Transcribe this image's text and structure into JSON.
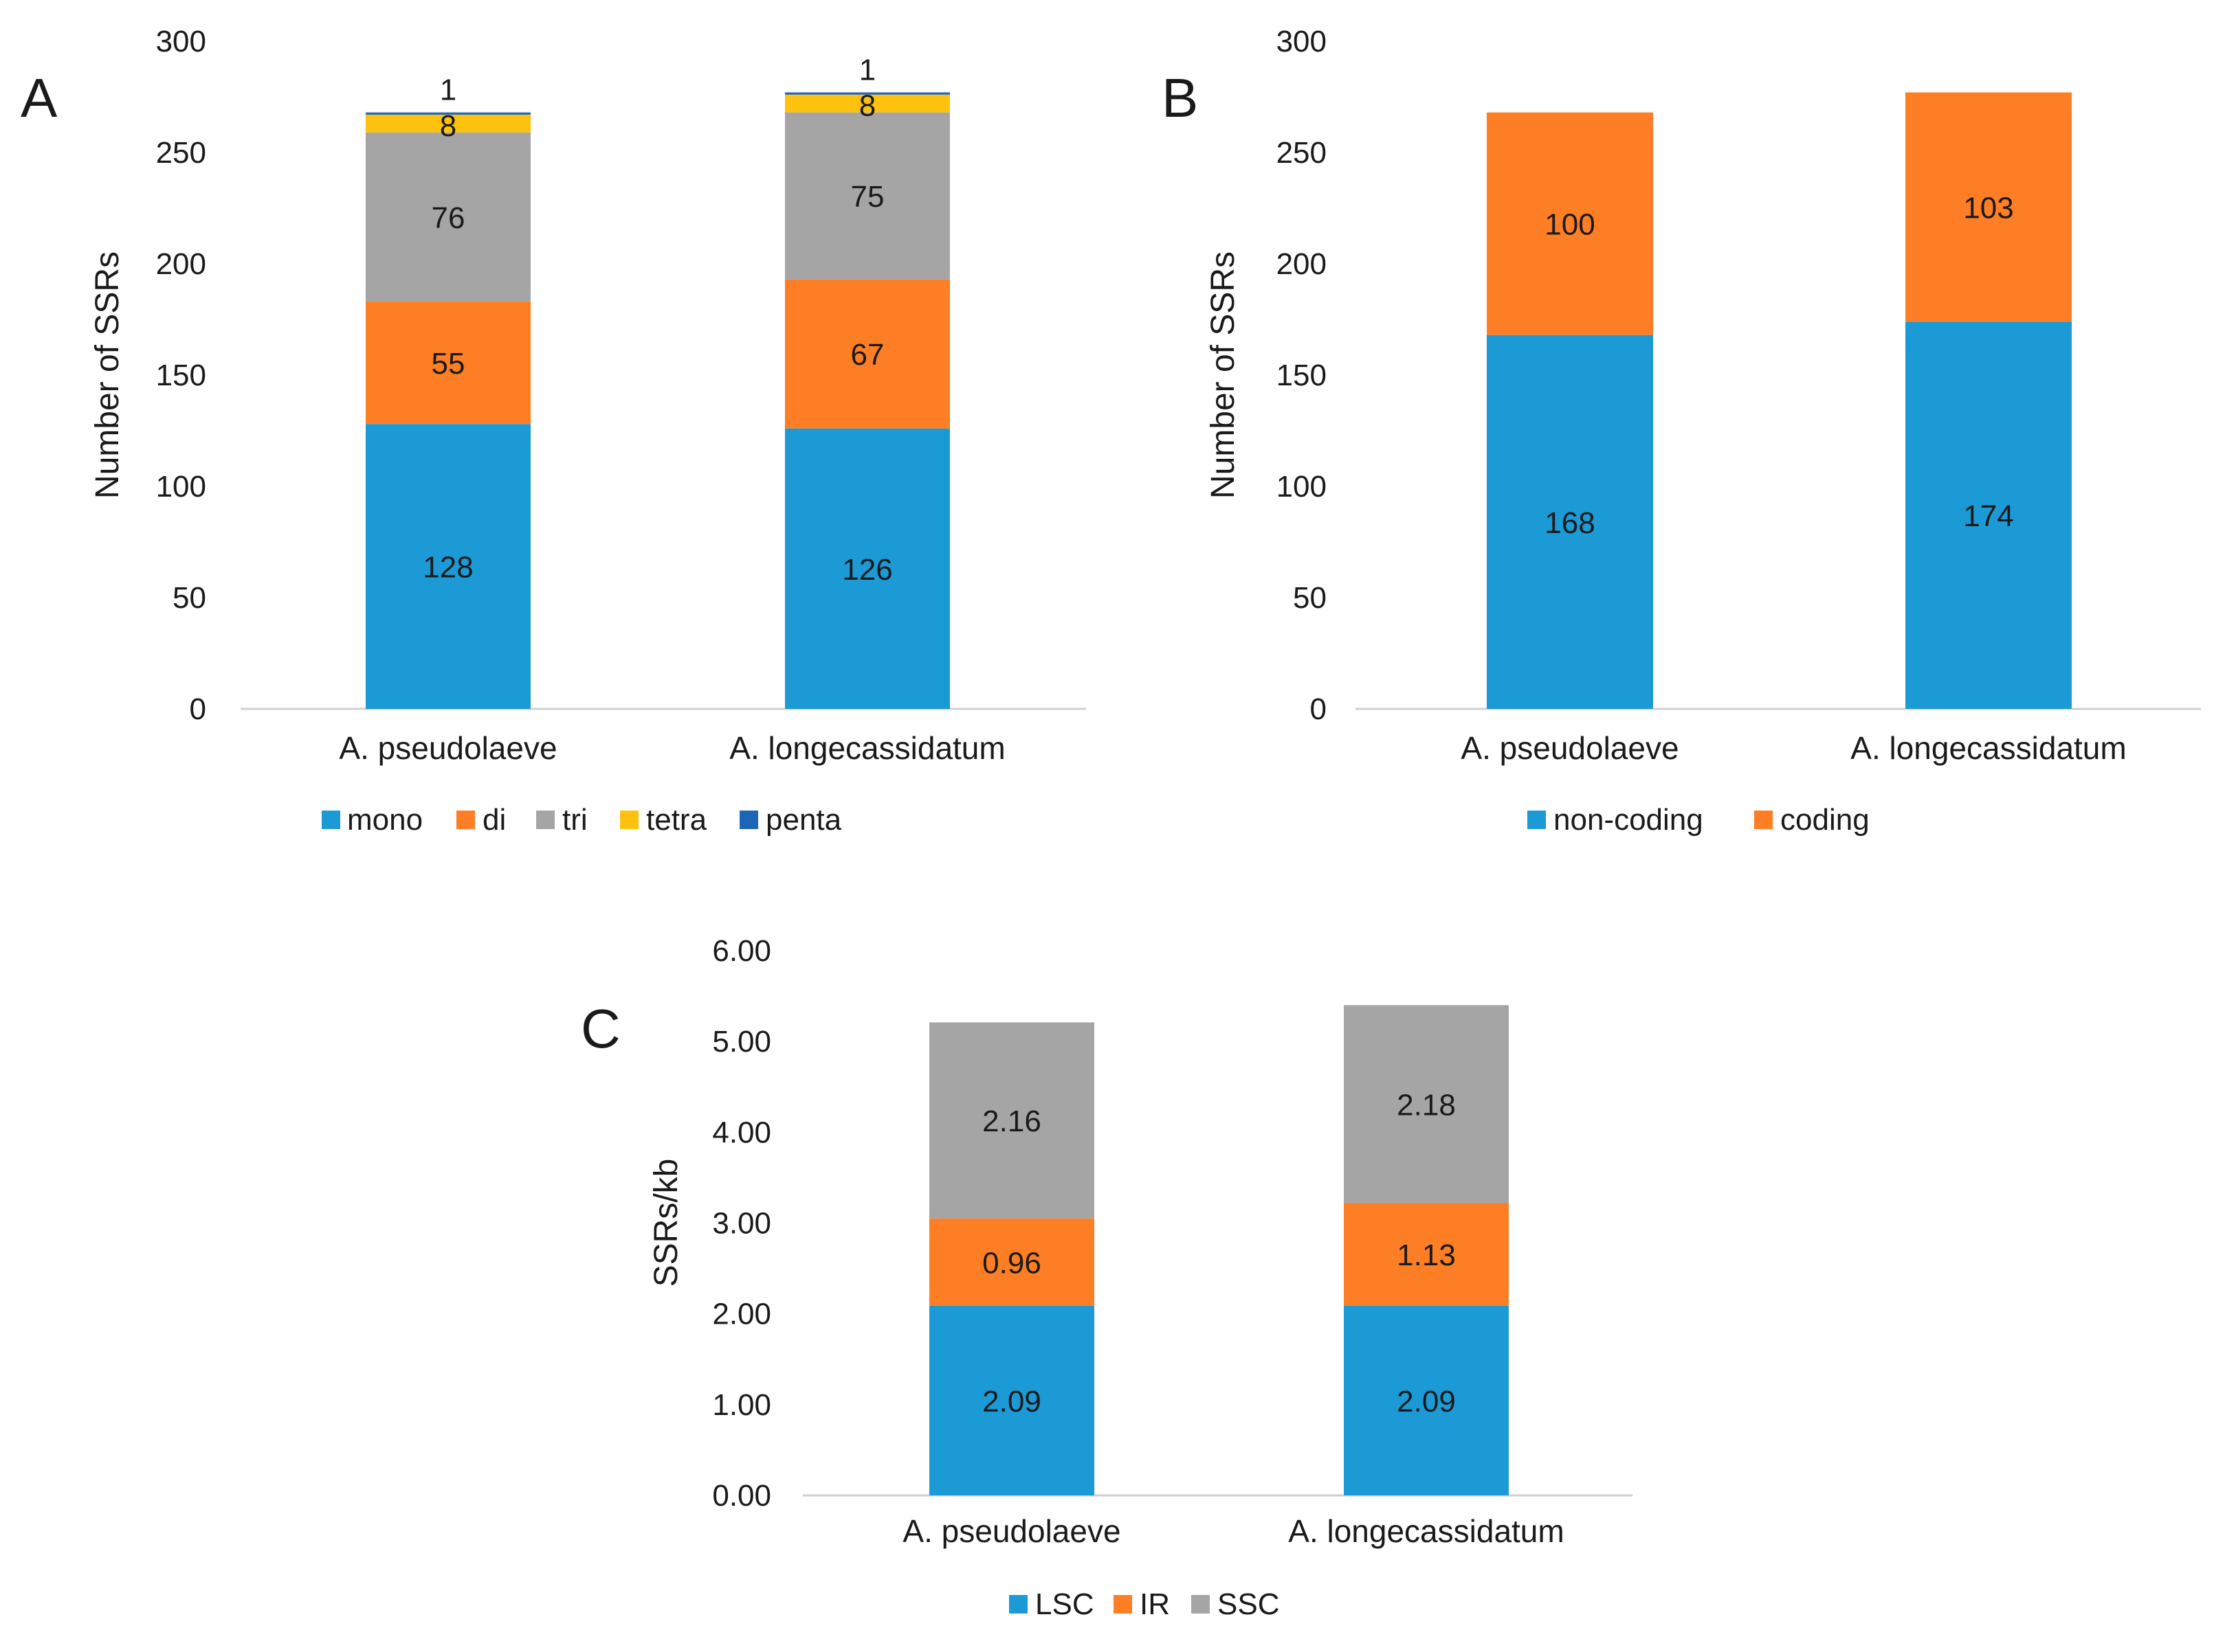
{
  "chart_data": [
    {
      "type": "bar",
      "stacked": true,
      "panel_label": "A",
      "categories": [
        "A. pseudolaeve",
        "A. longecassidatum"
      ],
      "ylabel": "Number of SSRs",
      "ylim": [
        0,
        300
      ],
      "yticks": [
        "0",
        "50",
        "100",
        "150",
        "200",
        "250",
        "300"
      ],
      "ytick_values": [
        0,
        50,
        100,
        150,
        200,
        250,
        300
      ],
      "legend_position": "bottom",
      "series": [
        {
          "name": "mono",
          "color": "#1B9AD6",
          "values": [
            128,
            126
          ],
          "labels": [
            "128",
            "126"
          ]
        },
        {
          "name": "di",
          "color": "#FD7E24",
          "values": [
            55,
            67
          ],
          "labels": [
            "55",
            "67"
          ]
        },
        {
          "name": "tri",
          "color": "#A5A5A5",
          "values": [
            76,
            75
          ],
          "labels": [
            "76",
            "75"
          ]
        },
        {
          "name": "tetra",
          "color": "#FDC10E",
          "values": [
            8,
            8
          ],
          "labels": [
            "8",
            "8"
          ]
        },
        {
          "name": "penta",
          "color": "#1E66B5",
          "values": [
            1,
            1
          ],
          "labels": [
            "1",
            "1"
          ]
        }
      ]
    },
    {
      "type": "bar",
      "stacked": true,
      "panel_label": "B",
      "categories": [
        "A. pseudolaeve",
        "A. longecassidatum"
      ],
      "ylabel": "Number of SSRs",
      "ylim": [
        0,
        300
      ],
      "yticks": [
        "0",
        "50",
        "100",
        "150",
        "200",
        "250",
        "300"
      ],
      "ytick_values": [
        0,
        50,
        100,
        150,
        200,
        250,
        300
      ],
      "legend_position": "bottom",
      "series": [
        {
          "name": "non-coding",
          "color": "#1B9AD6",
          "values": [
            168,
            174
          ],
          "labels": [
            "168",
            "174"
          ]
        },
        {
          "name": "coding",
          "color": "#FD7E24",
          "values": [
            100,
            103
          ],
          "labels": [
            "100",
            "103"
          ]
        }
      ]
    },
    {
      "type": "bar",
      "stacked": true,
      "panel_label": "C",
      "categories": [
        "A. pseudolaeve",
        "A. longecassidatum"
      ],
      "ylabel": "SSRs/kb",
      "ylim": [
        0,
        6
      ],
      "yticks": [
        "0.00",
        "1.00",
        "2.00",
        "3.00",
        "4.00",
        "5.00",
        "6.00"
      ],
      "ytick_values": [
        0,
        1,
        2,
        3,
        4,
        5,
        6
      ],
      "legend_position": "bottom",
      "series": [
        {
          "name": "LSC",
          "color": "#1B9AD6",
          "values": [
            2.09,
            2.09
          ],
          "labels": [
            "2.09",
            "2.09"
          ]
        },
        {
          "name": "IR",
          "color": "#FD7E24",
          "values": [
            0.96,
            1.13
          ],
          "labels": [
            "0.96",
            "1.13"
          ]
        },
        {
          "name": "SSC",
          "color": "#A5A5A5",
          "values": [
            2.16,
            2.18
          ],
          "labels": [
            "2.16",
            "2.18"
          ]
        }
      ]
    }
  ]
}
